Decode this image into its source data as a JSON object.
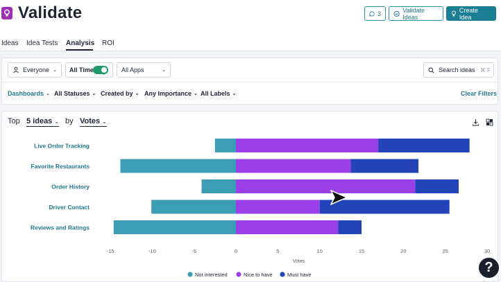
{
  "header": {
    "title": "Validate",
    "comments_count": "3",
    "validate_label": "Validate Ideas",
    "create_label": "Create Idea"
  },
  "tabs": [
    {
      "label": "Ideas"
    },
    {
      "label": "Idea Tests"
    },
    {
      "label": "Analysis",
      "active": true
    },
    {
      "label": "ROI"
    }
  ],
  "filters": {
    "audience": "Everyone",
    "all_time_label": "All Time",
    "all_time_on": true,
    "apps": "All Apps",
    "search_placeholder": "Search ideas",
    "search_shortcut": "⌘ F",
    "dashboards": "Dashboards",
    "statuses": "All Statuses",
    "created_by": "Created by",
    "importance": "Any Importance",
    "labels": "All Labels",
    "clear": "Clear Filters"
  },
  "chart_header": {
    "top_label": "Top",
    "count_select": "5 ideas",
    "by_label": "by",
    "metric_select": "Votes"
  },
  "colors": {
    "accent": "#1a7f92",
    "not_interested": "#3d9db3",
    "nice_to_have": "#9b3fe8",
    "must_have": "#2244b8"
  },
  "chart_data": {
    "type": "bar",
    "orientation": "horizontal",
    "stacked": true,
    "categories": [
      "Live Order Tracking",
      "Favorite Restaurants",
      "Order History",
      "Driver Contact",
      "Reviews and Ratings"
    ],
    "series": [
      {
        "name": "Not interested",
        "values": [
          -2.5,
          -13.8,
          -4.1,
          -10.1,
          -14.6
        ]
      },
      {
        "name": "Nice to have",
        "values": [
          17,
          13.7,
          21.4,
          10,
          12.2
        ]
      },
      {
        "name": "Must have",
        "values": [
          10.9,
          8.1,
          5.2,
          15.5,
          2.8
        ]
      }
    ],
    "xlabel": "Votes",
    "xlim": [
      -15,
      30
    ],
    "xticks": [
      "-15",
      "-10",
      "-5",
      "0",
      "5",
      "10",
      "15",
      "20",
      "25",
      "30"
    ],
    "grid": false,
    "legend_position": "bottom"
  }
}
